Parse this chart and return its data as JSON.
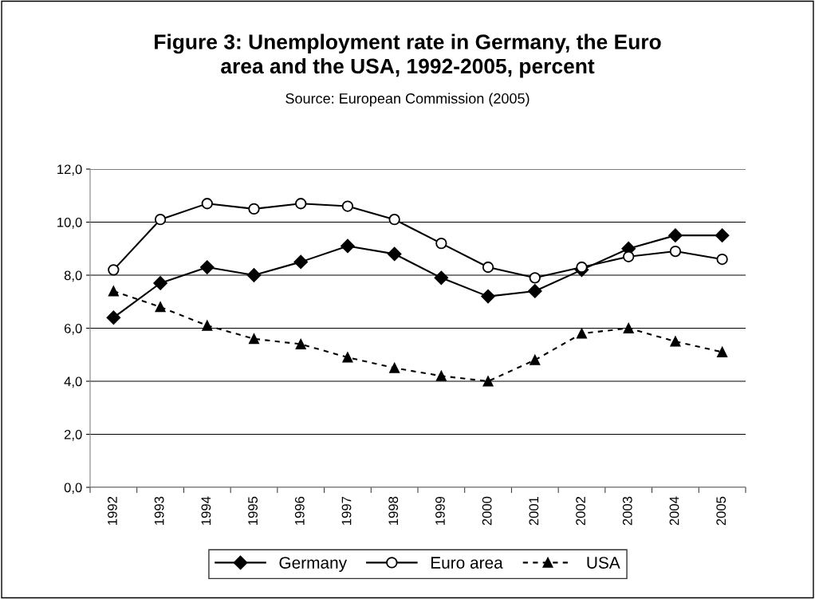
{
  "chart_data": {
    "type": "line",
    "title": "Figure 3: Unemployment rate in Germany, the Euro\narea and the USA, 1992-2005, percent",
    "subtitle": "Source: European Commission (2005)",
    "categories": [
      "1992",
      "1993",
      "1994",
      "1995",
      "1996",
      "1997",
      "1998",
      "1999",
      "2000",
      "2001",
      "2002",
      "2003",
      "2004",
      "2005"
    ],
    "series": [
      {
        "name": "Germany",
        "color": "#000000",
        "marker": "diamond",
        "line_style": "solid",
        "values": [
          6.4,
          7.7,
          8.3,
          8.0,
          8.5,
          9.1,
          8.8,
          7.9,
          7.2,
          7.4,
          8.2,
          9.0,
          9.5,
          9.5
        ]
      },
      {
        "name": "Euro area",
        "color": "#000000",
        "marker": "circle",
        "line_style": "solid",
        "values": [
          8.2,
          10.1,
          10.7,
          10.5,
          10.7,
          10.6,
          10.1,
          9.2,
          8.3,
          7.9,
          8.3,
          8.7,
          8.9,
          8.6
        ]
      },
      {
        "name": "USA",
        "color": "#000000",
        "marker": "triangle",
        "line_style": "dashed",
        "values": [
          7.4,
          6.8,
          6.1,
          5.6,
          5.4,
          4.9,
          4.5,
          4.2,
          4.0,
          4.8,
          5.8,
          6.0,
          5.5,
          5.1
        ]
      }
    ],
    "ylim": [
      0,
      12
    ],
    "yticks": [
      {
        "value": 0,
        "label": "0,0"
      },
      {
        "value": 2,
        "label": "2,0"
      },
      {
        "value": 4,
        "label": "4,0"
      },
      {
        "value": 6,
        "label": "6,0"
      },
      {
        "value": 8,
        "label": "8,0"
      },
      {
        "value": 10,
        "label": "10,0"
      },
      {
        "value": 12,
        "label": "12,0"
      }
    ],
    "grid": "y",
    "legend": "bottom"
  }
}
